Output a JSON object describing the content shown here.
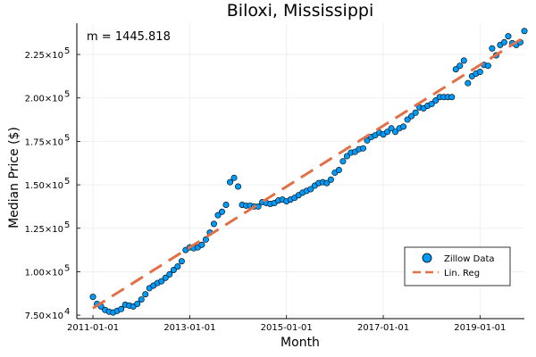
{
  "chart_data": {
    "type": "scatter",
    "title": "Biloxi, Mississippi",
    "xlabel": "Month",
    "ylabel": "Median Price ($)",
    "annotation": "m = 1445.818",
    "x_ticks": [
      "2011-01-01",
      "2013-01-01",
      "2015-01-01",
      "2017-01-01",
      "2019-01-01"
    ],
    "y_ticks": [
      {
        "mantissa": "7.50",
        "exp": "4",
        "value": 75000
      },
      {
        "mantissa": "1.00",
        "exp": "5",
        "value": 100000
      },
      {
        "mantissa": "1.25",
        "exp": "5",
        "value": 125000
      },
      {
        "mantissa": "1.50",
        "exp": "5",
        "value": 150000
      },
      {
        "mantissa": "1.75",
        "exp": "5",
        "value": 175000
      },
      {
        "mantissa": "2.00",
        "exp": "5",
        "value": 200000
      },
      {
        "mantissa": "2.25",
        "exp": "5",
        "value": 225000
      }
    ],
    "xlim": [
      "2010-09-01",
      "2019-12-01"
    ],
    "ylim": [
      73000,
      243000
    ],
    "grid": true,
    "legend_position": "bottom-right",
    "series": [
      {
        "name": "Zillow Data",
        "kind": "scatter",
        "color": "#009AF9",
        "points": [
          [
            "2011-01",
            85500
          ],
          [
            "2011-02",
            81500
          ],
          [
            "2011-03",
            80000
          ],
          [
            "2011-04",
            78000
          ],
          [
            "2011-05",
            77000
          ],
          [
            "2011-06",
            76500
          ],
          [
            "2011-07",
            77500
          ],
          [
            "2011-08",
            78500
          ],
          [
            "2011-09",
            81000
          ],
          [
            "2011-10",
            80500
          ],
          [
            "2011-11",
            80000
          ],
          [
            "2011-12",
            81500
          ],
          [
            "2012-01",
            84000
          ],
          [
            "2012-02",
            87000
          ],
          [
            "2012-03",
            90500
          ],
          [
            "2012-04",
            92000
          ],
          [
            "2012-05",
            93500
          ],
          [
            "2012-06",
            94500
          ],
          [
            "2012-07",
            96500
          ],
          [
            "2012-08",
            98500
          ],
          [
            "2012-09",
            101000
          ],
          [
            "2012-10",
            103000
          ],
          [
            "2012-11",
            106000
          ],
          [
            "2012-12",
            112500
          ],
          [
            "2013-01",
            114000
          ],
          [
            "2013-02",
            113500
          ],
          [
            "2013-03",
            114000
          ],
          [
            "2013-04",
            115500
          ],
          [
            "2013-05",
            118500
          ],
          [
            "2013-06",
            122500
          ],
          [
            "2013-07",
            127500
          ],
          [
            "2013-08",
            132500
          ],
          [
            "2013-09",
            134500
          ],
          [
            "2013-10",
            138500
          ],
          [
            "2013-11",
            151500
          ],
          [
            "2013-12",
            154000
          ],
          [
            "2014-01",
            149000
          ],
          [
            "2014-02",
            138500
          ],
          [
            "2014-03",
            138000
          ],
          [
            "2014-04",
            138000
          ],
          [
            "2014-05",
            137500
          ],
          [
            "2014-06",
            137500
          ],
          [
            "2014-07",
            140000
          ],
          [
            "2014-08",
            139500
          ],
          [
            "2014-09",
            139000
          ],
          [
            "2014-10",
            139500
          ],
          [
            "2014-11",
            141000
          ],
          [
            "2014-12",
            141500
          ],
          [
            "2015-01",
            140500
          ],
          [
            "2015-02",
            141500
          ],
          [
            "2015-03",
            142500
          ],
          [
            "2015-04",
            144000
          ],
          [
            "2015-05",
            145500
          ],
          [
            "2015-06",
            146500
          ],
          [
            "2015-07",
            147500
          ],
          [
            "2015-08",
            149500
          ],
          [
            "2015-09",
            151000
          ],
          [
            "2015-10",
            151500
          ],
          [
            "2015-11",
            151000
          ],
          [
            "2015-12",
            153000
          ],
          [
            "2016-01",
            157000
          ],
          [
            "2016-02",
            158500
          ],
          [
            "2016-03",
            163500
          ],
          [
            "2016-04",
            166500
          ],
          [
            "2016-05",
            168500
          ],
          [
            "2016-06",
            169000
          ],
          [
            "2016-07",
            170500
          ],
          [
            "2016-08",
            171000
          ],
          [
            "2016-09",
            175500
          ],
          [
            "2016-10",
            177500
          ],
          [
            "2016-11",
            178500
          ],
          [
            "2016-12",
            180000
          ],
          [
            "2017-01",
            179000
          ],
          [
            "2017-02",
            180500
          ],
          [
            "2017-03",
            182500
          ],
          [
            "2017-04",
            180500
          ],
          [
            "2017-05",
            182500
          ],
          [
            "2017-06",
            183500
          ],
          [
            "2017-07",
            187500
          ],
          [
            "2017-08",
            189500
          ],
          [
            "2017-09",
            191500
          ],
          [
            "2017-10",
            194500
          ],
          [
            "2017-11",
            194000
          ],
          [
            "2017-12",
            195500
          ],
          [
            "2018-01",
            196500
          ],
          [
            "2018-02",
            198500
          ],
          [
            "2018-03",
            200500
          ],
          [
            "2018-04",
            200500
          ],
          [
            "2018-05",
            200500
          ],
          [
            "2018-06",
            200500
          ],
          [
            "2018-07",
            216500
          ],
          [
            "2018-08",
            218500
          ],
          [
            "2018-09",
            221500
          ],
          [
            "2018-10",
            208500
          ],
          [
            "2018-11",
            212500
          ],
          [
            "2018-12",
            214000
          ],
          [
            "2019-01",
            215000
          ],
          [
            "2019-02",
            219000
          ],
          [
            "2019-03",
            218500
          ],
          [
            "2019-04",
            228500
          ],
          [
            "2019-05",
            224500
          ],
          [
            "2019-06",
            230500
          ],
          [
            "2019-07",
            232000
          ],
          [
            "2019-08",
            235500
          ],
          [
            "2019-09",
            231500
          ],
          [
            "2019-10",
            230500
          ],
          [
            "2019-11",
            232000
          ],
          [
            "2019-12",
            238500
          ]
        ]
      },
      {
        "name": "Lin. Reg",
        "kind": "line",
        "style": "dashed",
        "color": "#E26F46",
        "points": [
          [
            "2011-01",
            79000
          ],
          [
            "2019-12",
            235000
          ]
        ]
      }
    ]
  }
}
